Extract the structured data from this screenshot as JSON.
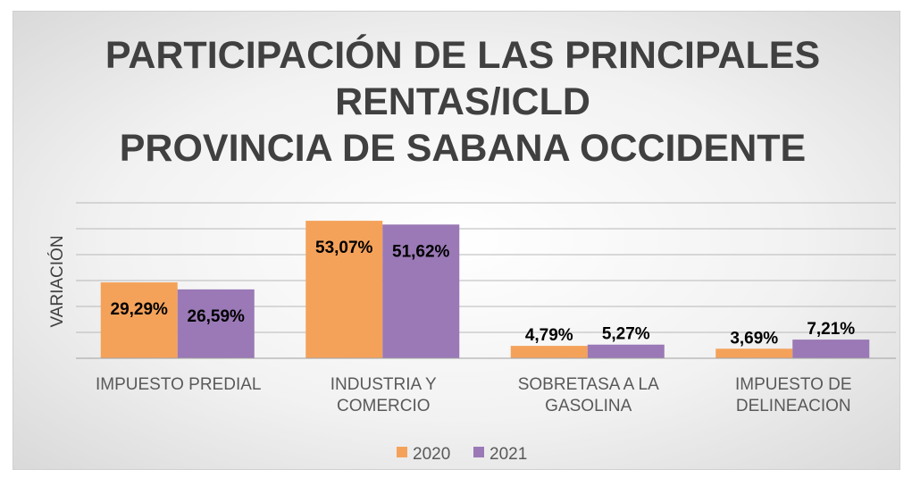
{
  "chart_data": {
    "type": "bar",
    "title": [
      "PARTICIPACIÓN DE LAS PRINCIPALES",
      "RENTAS/ICLD",
      "PROVINCIA DE SABANA OCCIDENTE"
    ],
    "y_label": "VARIACIÓN",
    "categories": [
      "IMPUESTO PREDIAL",
      "INDUSTRIA Y COMERCIO",
      "SOBRETASA A LA GASOLINA",
      "IMPUESTO DE DELINEACION"
    ],
    "series": [
      {
        "name": "2020",
        "color": "#f4a25a",
        "values": [
          29.29,
          53.07,
          4.79,
          3.69
        ],
        "value_labels": [
          "29,29%",
          "53,07%",
          "4,79%",
          "3,69%"
        ]
      },
      {
        "name": "2021",
        "color": "#9a79b6",
        "values": [
          26.59,
          51.62,
          5.27,
          7.21
        ],
        "value_labels": [
          "26,59%",
          "51,62%",
          "5,27%",
          "7,21%"
        ]
      }
    ],
    "ylim": [
      0,
      60
    ],
    "yticks": [
      0,
      10,
      20,
      30,
      40,
      50,
      60
    ],
    "grid": true,
    "legend": "bottom"
  }
}
